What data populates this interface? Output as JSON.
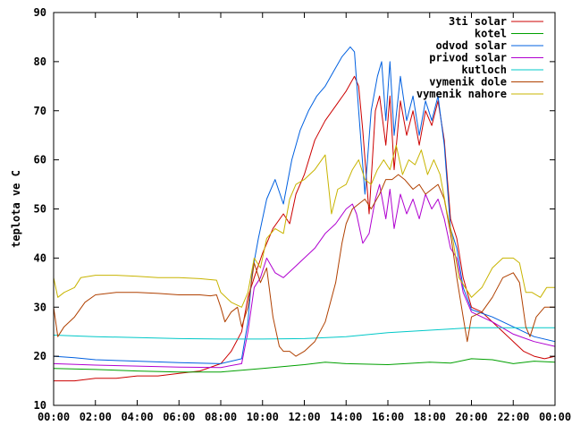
{
  "chart_data": {
    "type": "line",
    "ylabel": "teplota ve C",
    "ylim": [
      10,
      90
    ],
    "y_ticks": [
      "10",
      "20",
      "30",
      "40",
      "50",
      "60",
      "70",
      "80",
      "90"
    ],
    "xlim": [
      0,
      24
    ],
    "x_ticks": [
      "00:00",
      "02:00",
      "04:00",
      "06:00",
      "08:00",
      "10:00",
      "12:00",
      "14:00",
      "16:00",
      "18:00",
      "20:00",
      "22:00",
      "00:00"
    ],
    "legend_position": "top-right",
    "grid": false,
    "series": [
      {
        "name": "3ti solar",
        "color": "#cc0000",
        "points": [
          [
            0,
            15
          ],
          [
            1,
            15
          ],
          [
            2,
            15.5
          ],
          [
            3,
            15.5
          ],
          [
            4,
            16
          ],
          [
            5,
            16
          ],
          [
            6,
            16.5
          ],
          [
            7,
            17
          ],
          [
            8,
            18.5
          ],
          [
            8.5,
            21
          ],
          [
            9,
            25
          ],
          [
            9.3,
            32
          ],
          [
            9.6,
            36
          ],
          [
            10,
            41
          ],
          [
            10.5,
            46
          ],
          [
            11,
            49
          ],
          [
            11.3,
            47
          ],
          [
            11.6,
            53
          ],
          [
            12,
            57
          ],
          [
            12.5,
            64
          ],
          [
            13,
            68
          ],
          [
            13.5,
            71
          ],
          [
            14,
            74
          ],
          [
            14.4,
            77
          ],
          [
            14.6,
            75
          ],
          [
            14.8,
            66
          ],
          [
            15.1,
            49
          ],
          [
            15.4,
            70
          ],
          [
            15.6,
            73
          ],
          [
            15.9,
            63
          ],
          [
            16.1,
            73
          ],
          [
            16.3,
            58
          ],
          [
            16.6,
            72
          ],
          [
            16.9,
            65
          ],
          [
            17.2,
            70
          ],
          [
            17.5,
            63
          ],
          [
            17.8,
            70
          ],
          [
            18.1,
            67
          ],
          [
            18.4,
            72
          ],
          [
            18.7,
            64
          ],
          [
            19,
            48
          ],
          [
            19.3,
            44
          ],
          [
            19.6,
            36
          ],
          [
            20,
            30
          ],
          [
            20.5,
            29
          ],
          [
            21,
            27
          ],
          [
            21.5,
            25
          ],
          [
            22,
            23
          ],
          [
            22.5,
            21
          ],
          [
            23,
            20
          ],
          [
            23.5,
            19.5
          ],
          [
            24,
            20
          ]
        ]
      },
      {
        "name": "kotel",
        "color": "#00a000",
        "points": [
          [
            0,
            17.5
          ],
          [
            2,
            17.3
          ],
          [
            4,
            17
          ],
          [
            6,
            16.8
          ],
          [
            8,
            16.8
          ],
          [
            10,
            17.5
          ],
          [
            12,
            18.3
          ],
          [
            13,
            18.8
          ],
          [
            14,
            18.5
          ],
          [
            16,
            18.3
          ],
          [
            18,
            18.8
          ],
          [
            19,
            18.6
          ],
          [
            20,
            19.5
          ],
          [
            21,
            19.3
          ],
          [
            22,
            18.5
          ],
          [
            23,
            19
          ],
          [
            24,
            18.8
          ]
        ]
      },
      {
        "name": "odvod solar",
        "color": "#0060e0",
        "points": [
          [
            0,
            20
          ],
          [
            1,
            19.7
          ],
          [
            2,
            19.3
          ],
          [
            4,
            19
          ],
          [
            6,
            18.7
          ],
          [
            8,
            18.5
          ],
          [
            9,
            19.5
          ],
          [
            9.3,
            27
          ],
          [
            9.5,
            37
          ],
          [
            9.8,
            44
          ],
          [
            10.2,
            52
          ],
          [
            10.6,
            56
          ],
          [
            11,
            51
          ],
          [
            11.4,
            60
          ],
          [
            11.8,
            66
          ],
          [
            12.2,
            70
          ],
          [
            12.6,
            73
          ],
          [
            13,
            75
          ],
          [
            13.4,
            78
          ],
          [
            13.8,
            81
          ],
          [
            14.2,
            83
          ],
          [
            14.4,
            82
          ],
          [
            14.6,
            70
          ],
          [
            14.9,
            53
          ],
          [
            15.2,
            70
          ],
          [
            15.5,
            77
          ],
          [
            15.7,
            80
          ],
          [
            15.9,
            68
          ],
          [
            16.1,
            80
          ],
          [
            16.3,
            65
          ],
          [
            16.6,
            77
          ],
          [
            16.9,
            68
          ],
          [
            17.2,
            73
          ],
          [
            17.5,
            65
          ],
          [
            17.8,
            72
          ],
          [
            18.1,
            68
          ],
          [
            18.4,
            73
          ],
          [
            18.7,
            63
          ],
          [
            19,
            46
          ],
          [
            19.3,
            42
          ],
          [
            19.6,
            34
          ],
          [
            20,
            29.5
          ],
          [
            21,
            28
          ],
          [
            22,
            26
          ],
          [
            23,
            24
          ],
          [
            24,
            23
          ]
        ]
      },
      {
        "name": "privod solar",
        "color": "#b000d0",
        "points": [
          [
            0,
            18.5
          ],
          [
            2,
            18.2
          ],
          [
            4,
            18
          ],
          [
            6,
            17.8
          ],
          [
            8,
            17.7
          ],
          [
            9,
            18.5
          ],
          [
            9.3,
            25
          ],
          [
            9.6,
            34
          ],
          [
            9.9,
            36
          ],
          [
            10.2,
            40
          ],
          [
            10.6,
            37
          ],
          [
            11,
            36
          ],
          [
            11.5,
            38
          ],
          [
            12,
            40
          ],
          [
            12.5,
            42
          ],
          [
            13,
            45
          ],
          [
            13.5,
            47
          ],
          [
            14,
            50
          ],
          [
            14.3,
            51
          ],
          [
            14.5,
            49
          ],
          [
            14.8,
            43
          ],
          [
            15.1,
            45
          ],
          [
            15.4,
            52
          ],
          [
            15.6,
            55
          ],
          [
            15.9,
            48
          ],
          [
            16.1,
            54
          ],
          [
            16.3,
            46
          ],
          [
            16.6,
            53
          ],
          [
            16.9,
            49
          ],
          [
            17.2,
            52
          ],
          [
            17.5,
            48
          ],
          [
            17.8,
            53
          ],
          [
            18.1,
            50
          ],
          [
            18.4,
            52
          ],
          [
            18.7,
            48
          ],
          [
            19,
            42
          ],
          [
            19.3,
            40
          ],
          [
            19.6,
            33
          ],
          [
            20,
            29
          ],
          [
            21,
            27
          ],
          [
            22,
            24.5
          ],
          [
            23,
            23
          ],
          [
            24,
            22
          ]
        ]
      },
      {
        "name": "kutloch",
        "color": "#00c8c8",
        "points": [
          [
            0,
            24.3
          ],
          [
            2,
            24
          ],
          [
            4,
            23.8
          ],
          [
            6,
            23.6
          ],
          [
            8,
            23.5
          ],
          [
            10,
            23.5
          ],
          [
            12,
            23.6
          ],
          [
            14,
            24
          ],
          [
            16,
            24.8
          ],
          [
            18,
            25.3
          ],
          [
            20,
            25.8
          ],
          [
            22,
            25.8
          ],
          [
            24,
            25.8
          ]
        ]
      },
      {
        "name": "vymenik dole",
        "color": "#b04000",
        "points": [
          [
            0,
            30
          ],
          [
            0.2,
            24
          ],
          [
            0.5,
            26
          ],
          [
            1,
            28
          ],
          [
            1.5,
            31
          ],
          [
            2,
            32.5
          ],
          [
            3,
            33
          ],
          [
            4,
            33
          ],
          [
            5,
            32.8
          ],
          [
            6,
            32.5
          ],
          [
            7,
            32.5
          ],
          [
            7.5,
            32.3
          ],
          [
            7.8,
            32.5
          ],
          [
            8,
            30
          ],
          [
            8.2,
            27
          ],
          [
            8.5,
            29
          ],
          [
            8.8,
            30
          ],
          [
            9,
            26
          ],
          [
            9.3,
            30
          ],
          [
            9.6,
            39
          ],
          [
            9.9,
            35
          ],
          [
            10.2,
            38
          ],
          [
            10.5,
            28
          ],
          [
            10.8,
            22
          ],
          [
            11,
            21
          ],
          [
            11.3,
            21
          ],
          [
            11.6,
            20
          ],
          [
            12,
            21
          ],
          [
            12.5,
            23
          ],
          [
            13,
            27
          ],
          [
            13.5,
            35
          ],
          [
            13.8,
            43
          ],
          [
            14,
            47
          ],
          [
            14.3,
            50
          ],
          [
            14.6,
            51
          ],
          [
            14.9,
            52
          ],
          [
            15.2,
            50
          ],
          [
            15.6,
            53
          ],
          [
            15.9,
            56
          ],
          [
            16.2,
            56
          ],
          [
            16.5,
            57
          ],
          [
            16.8,
            56
          ],
          [
            17.2,
            54
          ],
          [
            17.5,
            55
          ],
          [
            17.8,
            53
          ],
          [
            18.1,
            54
          ],
          [
            18.4,
            55
          ],
          [
            18.7,
            52
          ],
          [
            19,
            45
          ],
          [
            19.3,
            36
          ],
          [
            19.6,
            28
          ],
          [
            19.8,
            23
          ],
          [
            20,
            28
          ],
          [
            20.5,
            29
          ],
          [
            21,
            32
          ],
          [
            21.5,
            36
          ],
          [
            22,
            37
          ],
          [
            22.3,
            35
          ],
          [
            22.6,
            26
          ],
          [
            22.8,
            24
          ],
          [
            23.1,
            28
          ],
          [
            23.5,
            30
          ],
          [
            24,
            30
          ]
        ]
      },
      {
        "name": "vymenik nahore",
        "color": "#c8b400",
        "points": [
          [
            0,
            36
          ],
          [
            0.2,
            32
          ],
          [
            0.5,
            33
          ],
          [
            1,
            34
          ],
          [
            1.3,
            36
          ],
          [
            2,
            36.5
          ],
          [
            3,
            36.5
          ],
          [
            4,
            36.3
          ],
          [
            5,
            36
          ],
          [
            6,
            36
          ],
          [
            7,
            35.8
          ],
          [
            7.8,
            35.5
          ],
          [
            8,
            33
          ],
          [
            8.5,
            31
          ],
          [
            9,
            30
          ],
          [
            9.3,
            33
          ],
          [
            9.6,
            40
          ],
          [
            9.9,
            38
          ],
          [
            10.2,
            44
          ],
          [
            10.6,
            46
          ],
          [
            11,
            45
          ],
          [
            11.3,
            52
          ],
          [
            11.6,
            55
          ],
          [
            12,
            56
          ],
          [
            12.5,
            58
          ],
          [
            13,
            61
          ],
          [
            13.3,
            49
          ],
          [
            13.6,
            54
          ],
          [
            14,
            55
          ],
          [
            14.3,
            58
          ],
          [
            14.6,
            60
          ],
          [
            14.9,
            56
          ],
          [
            15.2,
            55
          ],
          [
            15.5,
            58
          ],
          [
            15.8,
            60
          ],
          [
            16.1,
            58
          ],
          [
            16.4,
            63
          ],
          [
            16.7,
            57
          ],
          [
            17,
            60
          ],
          [
            17.3,
            59
          ],
          [
            17.6,
            62
          ],
          [
            17.9,
            57
          ],
          [
            18.2,
            60
          ],
          [
            18.5,
            57
          ],
          [
            18.8,
            50
          ],
          [
            19.1,
            44
          ],
          [
            19.4,
            36
          ],
          [
            19.7,
            34
          ],
          [
            20,
            32
          ],
          [
            20.5,
            34
          ],
          [
            21,
            38
          ],
          [
            21.5,
            40
          ],
          [
            22,
            40
          ],
          [
            22.3,
            39
          ],
          [
            22.6,
            33
          ],
          [
            22.9,
            33
          ],
          [
            23.3,
            32
          ],
          [
            23.6,
            34
          ],
          [
            24,
            34
          ]
        ]
      }
    ]
  }
}
